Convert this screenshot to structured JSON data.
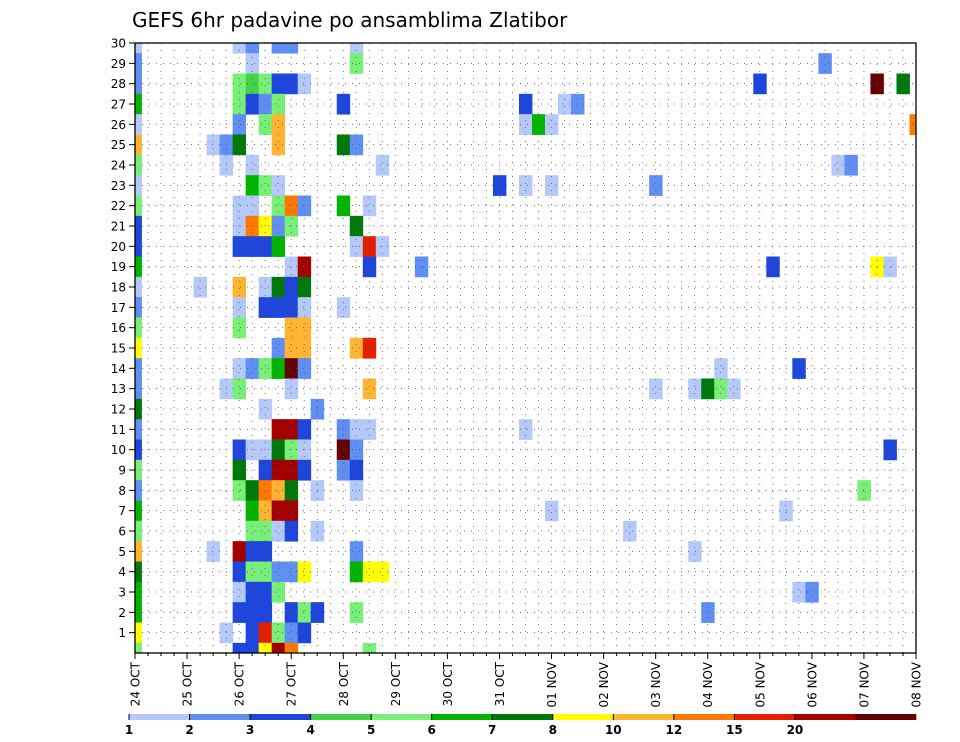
{
  "chart_data": {
    "type": "heatmap",
    "title": "GEFS 6hr padavine po ansamblima Zlatibor",
    "xlabel": "",
    "ylabel": "",
    "x_tick_labels": [
      "24 OCT",
      "25 OCT",
      "26 OCT",
      "27 OCT",
      "28 OCT",
      "29 OCT",
      "30 OCT",
      "31 OCT",
      "01 NOV",
      "02 NOV",
      "03 NOV",
      "04 NOV",
      "05 NOV",
      "06 NOV",
      "07 NOV",
      "08 NOV"
    ],
    "y_tick_labels": [
      "1",
      "2",
      "3",
      "4",
      "5",
      "6",
      "7",
      "8",
      "9",
      "10",
      "11",
      "12",
      "13",
      "14",
      "15",
      "16",
      "17",
      "18",
      "19",
      "20",
      "21",
      "22",
      "23",
      "24",
      "25",
      "26",
      "27",
      "28",
      "29",
      "30"
    ],
    "x_steps_per_day": 4,
    "x_range_steps": [
      0,
      60
    ],
    "y_range": [
      0,
      30
    ],
    "grid": true,
    "legend_placement": "bottom",
    "legend_levels": [
      "1",
      "2",
      "3",
      "4",
      "5",
      "6",
      "7",
      "8",
      "10",
      "12",
      "15",
      "20"
    ],
    "legend_colors": [
      "#b4c8fa",
      "#5f8ff2",
      "#1e46dc",
      "#46d246",
      "#78f078",
      "#00b400",
      "#00780a",
      "#ffff00",
      "#ffb432",
      "#ff7800",
      "#e61e00",
      "#a50000",
      "#640000"
    ],
    "cells": [
      [
        0,
        30,
        0
      ],
      [
        0,
        29,
        1
      ],
      [
        0,
        28,
        1
      ],
      [
        0,
        27,
        5
      ],
      [
        0,
        26,
        0
      ],
      [
        0,
        25,
        8
      ],
      [
        0,
        24,
        4
      ],
      [
        0,
        23,
        0
      ],
      [
        0,
        22,
        4
      ],
      [
        0,
        21,
        2
      ],
      [
        0,
        20,
        2
      ],
      [
        0,
        19,
        5
      ],
      [
        0,
        18,
        0
      ],
      [
        0,
        17,
        1
      ],
      [
        0,
        16,
        4
      ],
      [
        0,
        15,
        7
      ],
      [
        0,
        14,
        1
      ],
      [
        0,
        13,
        1
      ],
      [
        0,
        12,
        6
      ],
      [
        0,
        11,
        1
      ],
      [
        0,
        10,
        2
      ],
      [
        0,
        9,
        4
      ],
      [
        0,
        8,
        1
      ],
      [
        0,
        7,
        5
      ],
      [
        0,
        6,
        4
      ],
      [
        0,
        5,
        8
      ],
      [
        0,
        4,
        6
      ],
      [
        0,
        3,
        5
      ],
      [
        0,
        2,
        5
      ],
      [
        0,
        1,
        7
      ],
      [
        0,
        0,
        4
      ],
      [
        5,
        18,
        0
      ],
      [
        6,
        25,
        0
      ],
      [
        6,
        5,
        0
      ],
      [
        7,
        25,
        1
      ],
      [
        7,
        24,
        0
      ],
      [
        7,
        13,
        0
      ],
      [
        7,
        1,
        0
      ],
      [
        8,
        30,
        0
      ],
      [
        8,
        28,
        4
      ],
      [
        8,
        27,
        4
      ],
      [
        8,
        26,
        1
      ],
      [
        8,
        25,
        6
      ],
      [
        8,
        22,
        0
      ],
      [
        8,
        21,
        0
      ],
      [
        8,
        20,
        2
      ],
      [
        8,
        18,
        8
      ],
      [
        8,
        17,
        0
      ],
      [
        8,
        16,
        4
      ],
      [
        8,
        14,
        0
      ],
      [
        8,
        13,
        4
      ],
      [
        8,
        10,
        2
      ],
      [
        8,
        9,
        6
      ],
      [
        8,
        8,
        4
      ],
      [
        8,
        5,
        11
      ],
      [
        8,
        4,
        2
      ],
      [
        8,
        3,
        0
      ],
      [
        8,
        2,
        2
      ],
      [
        8,
        0,
        2
      ],
      [
        9,
        30,
        1
      ],
      [
        9,
        29,
        0
      ],
      [
        9,
        28,
        3
      ],
      [
        9,
        27,
        2
      ],
      [
        9,
        24,
        0
      ],
      [
        9,
        23,
        5
      ],
      [
        9,
        22,
        0
      ],
      [
        9,
        21,
        9
      ],
      [
        9,
        20,
        2
      ],
      [
        9,
        14,
        1
      ],
      [
        9,
        10,
        0
      ],
      [
        9,
        8,
        6
      ],
      [
        9,
        7,
        5
      ],
      [
        9,
        6,
        4
      ],
      [
        9,
        5,
        2
      ],
      [
        9,
        4,
        4
      ],
      [
        9,
        3,
        2
      ],
      [
        9,
        2,
        2
      ],
      [
        9,
        1,
        2
      ],
      [
        9,
        0,
        2
      ],
      [
        10,
        28,
        4
      ],
      [
        10,
        27,
        1
      ],
      [
        10,
        26,
        4
      ],
      [
        10,
        23,
        4
      ],
      [
        10,
        21,
        7
      ],
      [
        10,
        20,
        2
      ],
      [
        10,
        18,
        0
      ],
      [
        10,
        17,
        2
      ],
      [
        10,
        14,
        4
      ],
      [
        10,
        12,
        0
      ],
      [
        10,
        10,
        0
      ],
      [
        10,
        9,
        2
      ],
      [
        10,
        8,
        9
      ],
      [
        10,
        7,
        8
      ],
      [
        10,
        6,
        4
      ],
      [
        10,
        5,
        2
      ],
      [
        10,
        4,
        4
      ],
      [
        10,
        3,
        2
      ],
      [
        10,
        2,
        2
      ],
      [
        10,
        1,
        10
      ],
      [
        10,
        0,
        7
      ],
      [
        11,
        30,
        1
      ],
      [
        11,
        28,
        2
      ],
      [
        11,
        27,
        4
      ],
      [
        11,
        26,
        8
      ],
      [
        11,
        25,
        8
      ],
      [
        11,
        23,
        0
      ],
      [
        11,
        22,
        4
      ],
      [
        11,
        21,
        1
      ],
      [
        11,
        20,
        5
      ],
      [
        11,
        18,
        6
      ],
      [
        11,
        17,
        2
      ],
      [
        11,
        15,
        1
      ],
      [
        11,
        14,
        5
      ],
      [
        11,
        11,
        11
      ],
      [
        11,
        10,
        6
      ],
      [
        11,
        9,
        11
      ],
      [
        11,
        8,
        8
      ],
      [
        11,
        7,
        11
      ],
      [
        11,
        6,
        0
      ],
      [
        11,
        4,
        1
      ],
      [
        11,
        3,
        4
      ],
      [
        11,
        1,
        4
      ],
      [
        11,
        0,
        11
      ],
      [
        12,
        30,
        1
      ],
      [
        12,
        28,
        2
      ],
      [
        12,
        22,
        9
      ],
      [
        12,
        21,
        4
      ],
      [
        12,
        19,
        0
      ],
      [
        12,
        18,
        2
      ],
      [
        12,
        17,
        2
      ],
      [
        12,
        16,
        8
      ],
      [
        12,
        15,
        8
      ],
      [
        12,
        14,
        12
      ],
      [
        12,
        13,
        0
      ],
      [
        12,
        11,
        11
      ],
      [
        12,
        10,
        4
      ],
      [
        12,
        9,
        11
      ],
      [
        12,
        8,
        6
      ],
      [
        12,
        7,
        11
      ],
      [
        12,
        6,
        2
      ],
      [
        12,
        4,
        1
      ],
      [
        12,
        2,
        2
      ],
      [
        12,
        1,
        1
      ],
      [
        12,
        0,
        9
      ],
      [
        13,
        28,
        0
      ],
      [
        13,
        22,
        1
      ],
      [
        13,
        19,
        11
      ],
      [
        13,
        18,
        6
      ],
      [
        13,
        17,
        0
      ],
      [
        13,
        16,
        8
      ],
      [
        13,
        15,
        8
      ],
      [
        13,
        14,
        1
      ],
      [
        13,
        11,
        2
      ],
      [
        13,
        10,
        0
      ],
      [
        13,
        9,
        2
      ],
      [
        13,
        4,
        7
      ],
      [
        13,
        2,
        4
      ],
      [
        13,
        1,
        2
      ],
      [
        14,
        12,
        1
      ],
      [
        14,
        8,
        0
      ],
      [
        14,
        6,
        0
      ],
      [
        14,
        2,
        2
      ],
      [
        16,
        27,
        2
      ],
      [
        16,
        25,
        6
      ],
      [
        16,
        22,
        5
      ],
      [
        16,
        17,
        0
      ],
      [
        16,
        11,
        1
      ],
      [
        16,
        10,
        12
      ],
      [
        16,
        9,
        1
      ],
      [
        17,
        30,
        0
      ],
      [
        17,
        29,
        4
      ],
      [
        17,
        25,
        1
      ],
      [
        17,
        21,
        6
      ],
      [
        17,
        20,
        0
      ],
      [
        17,
        15,
        8
      ],
      [
        17,
        11,
        0
      ],
      [
        17,
        10,
        1
      ],
      [
        17,
        9,
        2
      ],
      [
        17,
        8,
        0
      ],
      [
        17,
        5,
        1
      ],
      [
        17,
        4,
        5
      ],
      [
        17,
        2,
        4
      ],
      [
        18,
        22,
        0
      ],
      [
        18,
        20,
        10
      ],
      [
        18,
        19,
        2
      ],
      [
        18,
        15,
        10
      ],
      [
        18,
        13,
        8
      ],
      [
        18,
        11,
        0
      ],
      [
        18,
        4,
        7
      ],
      [
        18,
        0,
        4
      ],
      [
        19,
        24,
        0
      ],
      [
        19,
        20,
        0
      ],
      [
        19,
        4,
        7
      ],
      [
        22,
        19,
        1
      ],
      [
        28,
        23,
        2
      ],
      [
        30,
        27,
        2
      ],
      [
        30,
        26,
        0
      ],
      [
        30,
        23,
        0
      ],
      [
        30,
        11,
        0
      ],
      [
        31,
        26,
        5
      ],
      [
        32,
        26,
        0
      ],
      [
        32,
        23,
        0
      ],
      [
        32,
        7,
        0
      ],
      [
        33,
        27,
        0
      ],
      [
        34,
        27,
        1
      ],
      [
        38,
        6,
        0
      ],
      [
        40,
        23,
        1
      ],
      [
        40,
        13,
        0
      ],
      [
        43,
        13,
        0
      ],
      [
        43,
        5,
        0
      ],
      [
        44,
        13,
        6
      ],
      [
        44,
        2,
        1
      ],
      [
        45,
        14,
        0
      ],
      [
        45,
        13,
        4
      ],
      [
        46,
        13,
        0
      ],
      [
        48,
        28,
        2
      ],
      [
        49,
        19,
        2
      ],
      [
        50,
        7,
        0
      ],
      [
        51,
        14,
        2
      ],
      [
        51,
        3,
        0
      ],
      [
        52,
        3,
        1
      ],
      [
        53,
        29,
        1
      ],
      [
        54,
        24,
        0
      ],
      [
        55,
        24,
        1
      ],
      [
        56,
        8,
        4
      ],
      [
        57,
        28,
        12
      ],
      [
        57,
        19,
        7
      ],
      [
        58,
        19,
        0
      ],
      [
        58,
        10,
        2
      ],
      [
        59,
        28,
        6
      ],
      [
        60,
        26,
        9
      ]
    ]
  }
}
